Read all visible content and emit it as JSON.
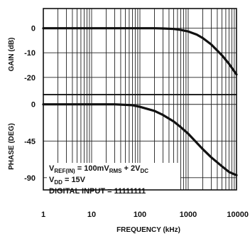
{
  "chart_data": {
    "type": "line",
    "xlabel": "FREQUENCY (kHz)",
    "x_scale": "log",
    "xlim": [
      1,
      10000
    ],
    "x_ticks": [
      "1",
      "10",
      "100",
      "1000",
      "10000"
    ],
    "x_tick_values": [
      1,
      10,
      100,
      1000,
      10000
    ],
    "grid": true,
    "panels": [
      {
        "ylabel": "GAIN (dB)",
        "ylim": [
          -27,
          8
        ],
        "y_ticks": [
          "0",
          "-10",
          "-20"
        ],
        "y_tick_values": [
          0,
          -10,
          -20
        ],
        "series": [
          {
            "x": [
              1,
              10,
              100,
              200,
              300,
              500,
              700,
              1000,
              1500,
              2000,
              3000,
              5000,
              7000,
              10000
            ],
            "values": [
              0,
              0,
              0,
              0,
              -0.1,
              -0.3,
              -0.7,
              -1.3,
              -2.6,
              -4.0,
              -6.6,
              -11.0,
              -14.5,
              -18.8
            ]
          }
        ]
      },
      {
        "ylabel": "PHASE (DEG)",
        "ylim": [
          -105,
          12
        ],
        "y_ticks": [
          "0",
          "-45",
          "-90"
        ],
        "y_tick_values": [
          0,
          -45,
          -90
        ],
        "series": [
          {
            "x": [
              1,
              10,
              30,
              70,
              100,
              200,
              300,
              500,
              700,
              1000,
              2000,
              3000,
              5000,
              7000,
              10000
            ],
            "values": [
              0,
              0,
              0,
              -1,
              -3,
              -8,
              -13,
              -21,
              -28,
              -36,
              -55,
              -65,
              -76,
              -83,
              -87
            ]
          }
        ]
      }
    ],
    "annotations": [
      {
        "parts": [
          [
            "V",
            ""
          ],
          [
            "REF(IN)",
            "sub"
          ],
          [
            " = 100mV",
            ""
          ],
          [
            "RMS",
            "sub"
          ],
          [
            " + 2V",
            ""
          ],
          [
            "DC",
            "sub"
          ]
        ]
      },
      {
        "parts": [
          [
            "V",
            ""
          ],
          [
            "DD",
            "sub"
          ],
          [
            " = 15V",
            ""
          ]
        ]
      },
      {
        "parts": [
          [
            "DIGITAL INPUT = 11111111",
            ""
          ]
        ]
      }
    ]
  }
}
